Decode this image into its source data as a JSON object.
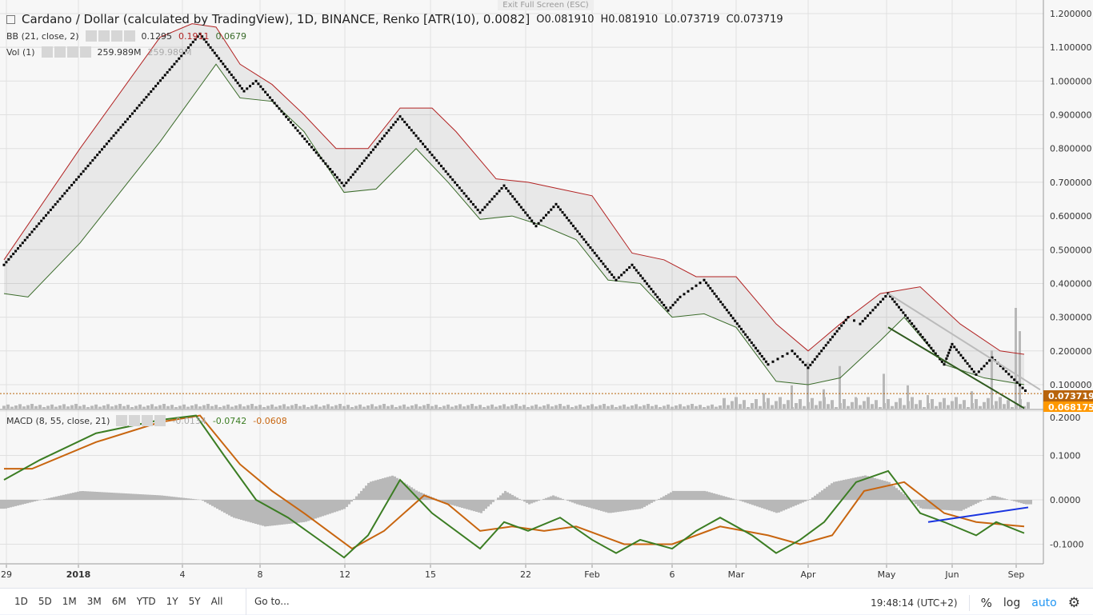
{
  "header": {
    "title": "Cardano / Dollar (calculated by TradingView), 1D, BINANCE, Renko [ATR(10), 0.0082]",
    "ohlc": {
      "o": "O0.081910",
      "h": "H0.081910",
      "l": "L0.073719",
      "c": "C0.073719"
    },
    "exit_fullscreen": "Exit Full Screen (ESC)"
  },
  "indicators": {
    "bb": {
      "label": "BB (21, close, 2)",
      "v1": "0.1295",
      "v2": "0.1911",
      "v3": "0.0679"
    },
    "vol": {
      "label": "Vol (1)",
      "v1": "259.989M",
      "v2": "259.989M"
    },
    "macd": {
      "label": "MACD (8, 55, close, 21)",
      "v1": "-0.0134",
      "v2": "-0.0742",
      "v3": "-0.0608"
    }
  },
  "colors": {
    "upper": "#b22222",
    "lower": "#3a6b2a",
    "macd": "#3b7d23",
    "signal": "#c8650f",
    "hist": "#b8b8b8",
    "last": "#b8640c",
    "lastB": "#ff9800",
    "blue": "#1a35e0"
  },
  "price_axis": {
    "ticks": [
      "1.200000",
      "1.100000",
      "1.000000",
      "0.900000",
      "0.800000",
      "0.700000",
      "0.600000",
      "0.500000",
      "0.400000",
      "0.300000",
      "0.200000",
      "0.100000"
    ],
    "last": "0.073719",
    "last2": "0.068175"
  },
  "macd_axis": {
    "ticks": [
      "0.2000",
      "0.1000",
      "0.0000",
      "-0.1000"
    ]
  },
  "time_axis": {
    "labels": [
      "29",
      "2018",
      "4",
      "8",
      "12",
      "15",
      "22",
      "Feb",
      "6",
      "Mar",
      "Apr",
      "May",
      "Jun",
      "Sep"
    ]
  },
  "toolbar": {
    "ranges": [
      "1D",
      "5D",
      "1M",
      "3M",
      "6M",
      "YTD",
      "1Y",
      "5Y",
      "All"
    ],
    "goto": "Go to...",
    "time": "19:48:14 (UTC+2)",
    "percent": "%",
    "log": "log",
    "auto": "auto"
  },
  "chart_data": {
    "type": "line",
    "title": "Cardano / Dollar Renko",
    "x_unit": "brick index",
    "price_ylim": [
      0.0,
      1.22
    ],
    "macd_ylim": [
      -0.145,
      0.205
    ],
    "renko": [
      [
        1,
        0.455
      ],
      [
        50,
        1.14
      ],
      [
        61,
        0.97
      ],
      [
        64,
        1.0
      ],
      [
        86,
        0.69
      ],
      [
        100,
        0.895
      ],
      [
        120,
        0.61
      ],
      [
        126,
        0.69
      ],
      [
        134,
        0.57
      ],
      [
        139,
        0.635
      ],
      [
        154,
        0.41
      ],
      [
        158,
        0.455
      ],
      [
        167,
        0.32
      ],
      [
        170,
        0.36
      ],
      [
        176,
        0.41
      ],
      [
        192,
        0.16
      ],
      [
        198,
        0.2
      ],
      [
        202,
        0.15
      ],
      [
        212,
        0.3
      ],
      [
        215,
        0.28
      ],
      [
        222,
        0.37
      ],
      [
        236,
        0.16
      ],
      [
        238,
        0.22
      ],
      [
        244,
        0.13
      ],
      [
        248,
        0.18
      ],
      [
        257,
        0.074
      ]
    ],
    "bb_upper": [
      [
        1,
        0.47
      ],
      [
        20,
        0.8
      ],
      [
        40,
        1.13
      ],
      [
        48,
        1.17
      ],
      [
        54,
        1.16
      ],
      [
        60,
        1.05
      ],
      [
        68,
        0.99
      ],
      [
        76,
        0.9
      ],
      [
        84,
        0.8
      ],
      [
        92,
        0.8
      ],
      [
        100,
        0.92
      ],
      [
        108,
        0.92
      ],
      [
        114,
        0.85
      ],
      [
        124,
        0.71
      ],
      [
        132,
        0.7
      ],
      [
        140,
        0.68
      ],
      [
        148,
        0.66
      ],
      [
        158,
        0.49
      ],
      [
        166,
        0.47
      ],
      [
        174,
        0.42
      ],
      [
        184,
        0.42
      ],
      [
        194,
        0.28
      ],
      [
        202,
        0.2
      ],
      [
        210,
        0.28
      ],
      [
        220,
        0.37
      ],
      [
        230,
        0.39
      ],
      [
        240,
        0.28
      ],
      [
        250,
        0.2
      ],
      [
        256,
        0.19
      ]
    ],
    "bb_lower": [
      [
        1,
        0.37
      ],
      [
        7,
        0.36
      ],
      [
        20,
        0.52
      ],
      [
        40,
        0.82
      ],
      [
        54,
        1.05
      ],
      [
        60,
        0.95
      ],
      [
        68,
        0.94
      ],
      [
        76,
        0.85
      ],
      [
        86,
        0.67
      ],
      [
        94,
        0.68
      ],
      [
        104,
        0.8
      ],
      [
        112,
        0.7
      ],
      [
        120,
        0.59
      ],
      [
        128,
        0.6
      ],
      [
        136,
        0.57
      ],
      [
        144,
        0.53
      ],
      [
        152,
        0.41
      ],
      [
        160,
        0.4
      ],
      [
        168,
        0.3
      ],
      [
        176,
        0.31
      ],
      [
        184,
        0.27
      ],
      [
        194,
        0.11
      ],
      [
        202,
        0.1
      ],
      [
        210,
        0.12
      ],
      [
        220,
        0.23
      ],
      [
        226,
        0.3
      ],
      [
        236,
        0.16
      ],
      [
        246,
        0.12
      ],
      [
        256,
        0.1
      ]
    ],
    "volume_spikes_M": [
      [
        191,
        40
      ],
      [
        198,
        60
      ],
      [
        202,
        120
      ],
      [
        206,
        50
      ],
      [
        210,
        110
      ],
      [
        214,
        30
      ],
      [
        221,
        90
      ],
      [
        227,
        60
      ],
      [
        232,
        35
      ],
      [
        243,
        45
      ],
      [
        248,
        150
      ],
      [
        254,
        259.989
      ],
      [
        255,
        200
      ]
    ],
    "macd": [
      [
        1,
        0.045
      ],
      [
        10,
        0.09
      ],
      [
        24,
        0.15
      ],
      [
        40,
        0.18
      ],
      [
        49,
        0.19
      ],
      [
        56,
        0.1
      ],
      [
        64,
        0.0
      ],
      [
        72,
        -0.04
      ],
      [
        86,
        -0.13
      ],
      [
        92,
        -0.08
      ],
      [
        100,
        0.045
      ],
      [
        108,
        -0.03
      ],
      [
        120,
        -0.11
      ],
      [
        126,
        -0.05
      ],
      [
        132,
        -0.07
      ],
      [
        140,
        -0.04
      ],
      [
        148,
        -0.09
      ],
      [
        154,
        -0.12
      ],
      [
        160,
        -0.09
      ],
      [
        168,
        -0.11
      ],
      [
        174,
        -0.07
      ],
      [
        180,
        -0.04
      ],
      [
        188,
        -0.08
      ],
      [
        194,
        -0.12
      ],
      [
        200,
        -0.09
      ],
      [
        206,
        -0.05
      ],
      [
        214,
        0.04
      ],
      [
        222,
        0.065
      ],
      [
        230,
        -0.03
      ],
      [
        236,
        -0.05
      ],
      [
        244,
        -0.08
      ],
      [
        249,
        -0.05
      ],
      [
        256,
        -0.075
      ]
    ],
    "signal": [
      [
        1,
        0.07
      ],
      [
        8,
        0.07
      ],
      [
        24,
        0.13
      ],
      [
        40,
        0.175
      ],
      [
        50,
        0.19
      ],
      [
        60,
        0.08
      ],
      [
        68,
        0.02
      ],
      [
        76,
        -0.03
      ],
      [
        88,
        -0.11
      ],
      [
        96,
        -0.07
      ],
      [
        106,
        0.01
      ],
      [
        112,
        -0.01
      ],
      [
        120,
        -0.07
      ],
      [
        128,
        -0.06
      ],
      [
        136,
        -0.07
      ],
      [
        144,
        -0.06
      ],
      [
        156,
        -0.1
      ],
      [
        168,
        -0.1
      ],
      [
        180,
        -0.06
      ],
      [
        192,
        -0.08
      ],
      [
        200,
        -0.1
      ],
      [
        208,
        -0.08
      ],
      [
        216,
        0.02
      ],
      [
        226,
        0.04
      ],
      [
        236,
        -0.03
      ],
      [
        244,
        -0.05
      ],
      [
        256,
        -0.06
      ]
    ],
    "histogram": [
      [
        1,
        -0.02
      ],
      [
        10,
        0.0
      ],
      [
        20,
        0.02
      ],
      [
        40,
        0.01
      ],
      [
        50,
        0.0
      ],
      [
        58,
        -0.04
      ],
      [
        66,
        -0.06
      ],
      [
        76,
        -0.05
      ],
      [
        86,
        -0.02
      ],
      [
        92,
        0.04
      ],
      [
        98,
        0.055
      ],
      [
        104,
        0.02
      ],
      [
        112,
        -0.01
      ],
      [
        120,
        -0.03
      ],
      [
        126,
        0.02
      ],
      [
        132,
        -0.01
      ],
      [
        138,
        0.01
      ],
      [
        144,
        -0.01
      ],
      [
        152,
        -0.03
      ],
      [
        160,
        -0.02
      ],
      [
        168,
        0.02
      ],
      [
        176,
        0.02
      ],
      [
        184,
        0.0
      ],
      [
        194,
        -0.03
      ],
      [
        202,
        0.0
      ],
      [
        208,
        0.04
      ],
      [
        216,
        0.055
      ],
      [
        222,
        0.04
      ],
      [
        230,
        -0.02
      ],
      [
        240,
        -0.025
      ],
      [
        248,
        0.01
      ],
      [
        256,
        -0.01
      ]
    ],
    "trendlines": {
      "price_gray": [
        [
          222,
          0.37
        ],
        [
          260,
          0.085
        ]
      ],
      "price_green": [
        [
          222,
          0.27
        ],
        [
          256,
          0.03
        ]
      ],
      "macd_blue": [
        [
          232,
          -0.05
        ],
        [
          257,
          -0.017
        ]
      ]
    }
  }
}
